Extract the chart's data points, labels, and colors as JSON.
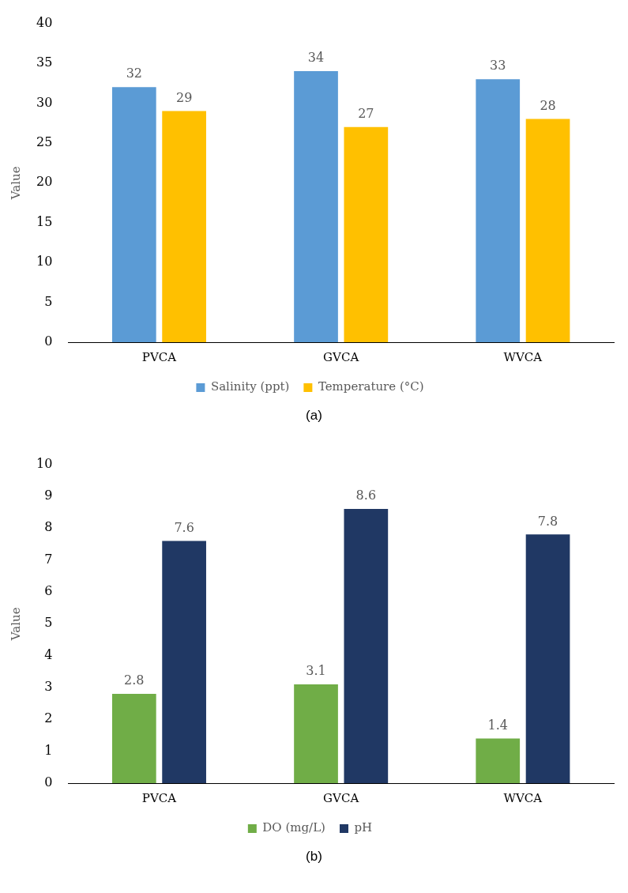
{
  "chart_data": [
    {
      "type": "bar",
      "ylabel": "Value",
      "categories": [
        "PVCA",
        "GVCA",
        "WVCA"
      ],
      "series": [
        {
          "name": "Salinity (ppt)",
          "color": "#5b9bd5",
          "values": [
            32,
            34,
            33
          ]
        },
        {
          "name": "Temperature (°C)",
          "color": "#ffc000",
          "values": [
            29,
            27,
            28
          ]
        }
      ],
      "ylim": [
        0,
        40
      ],
      "yticks": [
        0,
        5,
        10,
        15,
        20,
        25,
        30,
        35,
        40
      ],
      "grid": false,
      "legend": "bottom",
      "data_labels": true,
      "annotations": [
        "(a)"
      ]
    },
    {
      "type": "bar",
      "ylabel": "Value",
      "categories": [
        "PVCA",
        "GVCA",
        "WVCA"
      ],
      "series": [
        {
          "name": "DO (mg/L)",
          "color": "#70ad47",
          "values": [
            2.8,
            3.1,
            1.4
          ]
        },
        {
          "name": "pH",
          "color": "#203864",
          "values": [
            7.6,
            8.6,
            7.8
          ]
        }
      ],
      "ylim": [
        0,
        10
      ],
      "yticks": [
        0,
        1,
        2,
        3,
        4,
        5,
        6,
        7,
        8,
        9,
        10
      ],
      "grid": false,
      "legend": "bottom",
      "data_labels": true,
      "annotations": [
        "(b)"
      ]
    }
  ]
}
